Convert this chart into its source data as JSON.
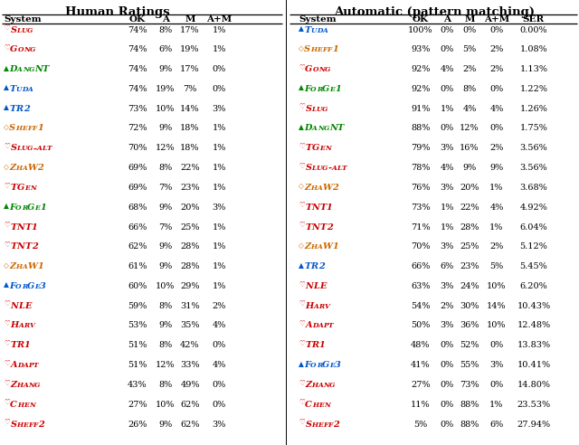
{
  "left_title": "Human Ratings",
  "right_title": "Automatic (pattern matching)",
  "left_headers": [
    "System",
    "OK",
    "A",
    "M",
    "A+M"
  ],
  "right_headers": [
    "System",
    "OK",
    "A",
    "M",
    "A+M",
    "SER"
  ],
  "left_rows": [
    {
      "symbol": "♡",
      "name": "Slug",
      "color": "#cc0000",
      "sym_color": "#cc0000",
      "vals": [
        "74%",
        "8%",
        "17%",
        "1%"
      ]
    },
    {
      "symbol": "♡",
      "name": "Gong",
      "color": "#cc0000",
      "sym_color": "#cc0000",
      "vals": [
        "74%",
        "6%",
        "19%",
        "1%"
      ]
    },
    {
      "symbol": "▲",
      "name": "DangNT",
      "color": "#008800",
      "sym_color": "#008800",
      "vals": [
        "74%",
        "9%",
        "17%",
        "0%"
      ]
    },
    {
      "symbol": "▲",
      "name": "Tuda",
      "color": "#0055cc",
      "sym_color": "#0055cc",
      "vals": [
        "74%",
        "19%",
        "7%",
        "0%"
      ]
    },
    {
      "symbol": "▲",
      "name": "TR2",
      "color": "#0055cc",
      "sym_color": "#0055cc",
      "vals": [
        "73%",
        "10%",
        "14%",
        "3%"
      ]
    },
    {
      "symbol": "◇",
      "name": "Sheff1",
      "color": "#cc6600",
      "sym_color": "#cc6600",
      "vals": [
        "72%",
        "9%",
        "18%",
        "1%"
      ]
    },
    {
      "symbol": "♡",
      "name": "Slug-alt",
      "color": "#cc0000",
      "sym_color": "#cc0000",
      "vals": [
        "70%",
        "12%",
        "18%",
        "1%"
      ]
    },
    {
      "symbol": "◇",
      "name": "ZhaW2",
      "color": "#cc6600",
      "sym_color": "#cc6600",
      "vals": [
        "69%",
        "8%",
        "22%",
        "1%"
      ]
    },
    {
      "symbol": "♡",
      "name": "TGen",
      "color": "#cc0000",
      "sym_color": "#cc0000",
      "vals": [
        "69%",
        "7%",
        "23%",
        "1%"
      ]
    },
    {
      "symbol": "▲",
      "name": "ForGe1",
      "color": "#008800",
      "sym_color": "#008800",
      "vals": [
        "68%",
        "9%",
        "20%",
        "3%"
      ]
    },
    {
      "symbol": "♡",
      "name": "TNT1",
      "color": "#cc0000",
      "sym_color": "#cc0000",
      "vals": [
        "66%",
        "7%",
        "25%",
        "1%"
      ]
    },
    {
      "symbol": "♡",
      "name": "TNT2",
      "color": "#cc0000",
      "sym_color": "#cc0000",
      "vals": [
        "62%",
        "9%",
        "28%",
        "1%"
      ]
    },
    {
      "symbol": "◇",
      "name": "ZhaW1",
      "color": "#cc6600",
      "sym_color": "#cc6600",
      "vals": [
        "61%",
        "9%",
        "28%",
        "1%"
      ]
    },
    {
      "symbol": "▲",
      "name": "ForGe3",
      "color": "#0055cc",
      "sym_color": "#0055cc",
      "vals": [
        "60%",
        "10%",
        "29%",
        "1%"
      ]
    },
    {
      "symbol": "♡",
      "name": "NLE",
      "color": "#cc0000",
      "sym_color": "#cc0000",
      "vals": [
        "59%",
        "8%",
        "31%",
        "2%"
      ]
    },
    {
      "symbol": "♡",
      "name": "Harv",
      "color": "#cc0000",
      "sym_color": "#cc0000",
      "vals": [
        "53%",
        "9%",
        "35%",
        "4%"
      ]
    },
    {
      "symbol": "♡",
      "name": "TR1",
      "color": "#cc0000",
      "sym_color": "#cc0000",
      "vals": [
        "51%",
        "8%",
        "42%",
        "0%"
      ]
    },
    {
      "symbol": "♡",
      "name": "Adapt",
      "color": "#cc0000",
      "sym_color": "#cc0000",
      "vals": [
        "51%",
        "12%",
        "33%",
        "4%"
      ]
    },
    {
      "symbol": "♡",
      "name": "Zhang",
      "color": "#cc0000",
      "sym_color": "#cc0000",
      "vals": [
        "43%",
        "8%",
        "49%",
        "0%"
      ]
    },
    {
      "symbol": "♡",
      "name": "Chen",
      "color": "#cc0000",
      "sym_color": "#cc0000",
      "vals": [
        "27%",
        "10%",
        "62%",
        "0%"
      ]
    },
    {
      "symbol": "♡",
      "name": "Sheff2",
      "color": "#cc0000",
      "sym_color": "#cc0000",
      "vals": [
        "26%",
        "9%",
        "62%",
        "3%"
      ]
    }
  ],
  "right_rows": [
    {
      "symbol": "▲",
      "name": "Tuda",
      "color": "#0055cc",
      "sym_color": "#0055cc",
      "vals": [
        "100%",
        "0%",
        "0%",
        "0%",
        "0.00%"
      ]
    },
    {
      "symbol": "◇",
      "name": "Sheff1",
      "color": "#cc6600",
      "sym_color": "#cc6600",
      "vals": [
        "93%",
        "0%",
        "5%",
        "2%",
        "1.08%"
      ]
    },
    {
      "symbol": "♡",
      "name": "Gong",
      "color": "#cc0000",
      "sym_color": "#cc0000",
      "vals": [
        "92%",
        "4%",
        "2%",
        "2%",
        "1.13%"
      ]
    },
    {
      "symbol": "▲",
      "name": "ForGe1",
      "color": "#008800",
      "sym_color": "#008800",
      "vals": [
        "92%",
        "0%",
        "8%",
        "0%",
        "1.22%"
      ]
    },
    {
      "symbol": "♡",
      "name": "Slug",
      "color": "#cc0000",
      "sym_color": "#cc0000",
      "vals": [
        "91%",
        "1%",
        "4%",
        "4%",
        "1.26%"
      ]
    },
    {
      "symbol": "▲",
      "name": "DangNT",
      "color": "#008800",
      "sym_color": "#008800",
      "vals": [
        "88%",
        "0%",
        "12%",
        "0%",
        "1.75%"
      ]
    },
    {
      "symbol": "♡",
      "name": "TGen",
      "color": "#cc0000",
      "sym_color": "#cc0000",
      "vals": [
        "79%",
        "3%",
        "16%",
        "2%",
        "3.56%"
      ]
    },
    {
      "symbol": "♡",
      "name": "Slug-alt",
      "color": "#cc0000",
      "sym_color": "#cc0000",
      "vals": [
        "78%",
        "4%",
        "9%",
        "9%",
        "3.56%"
      ]
    },
    {
      "symbol": "◇",
      "name": "ZhaW2",
      "color": "#cc6600",
      "sym_color": "#cc6600",
      "vals": [
        "76%",
        "3%",
        "20%",
        "1%",
        "3.68%"
      ]
    },
    {
      "symbol": "♡",
      "name": "TNT1",
      "color": "#cc0000",
      "sym_color": "#cc0000",
      "vals": [
        "73%",
        "1%",
        "22%",
        "4%",
        "4.92%"
      ]
    },
    {
      "symbol": "♡",
      "name": "TNT2",
      "color": "#cc0000",
      "sym_color": "#cc0000",
      "vals": [
        "71%",
        "1%",
        "28%",
        "1%",
        "6.04%"
      ]
    },
    {
      "symbol": "◇",
      "name": "ZhaW1",
      "color": "#cc6600",
      "sym_color": "#cc6600",
      "vals": [
        "70%",
        "3%",
        "25%",
        "2%",
        "5.12%"
      ]
    },
    {
      "symbol": "▲",
      "name": "TR2",
      "color": "#0055cc",
      "sym_color": "#0055cc",
      "vals": [
        "66%",
        "6%",
        "23%",
        "5%",
        "5.45%"
      ]
    },
    {
      "symbol": "♡",
      "name": "NLE",
      "color": "#cc0000",
      "sym_color": "#cc0000",
      "vals": [
        "63%",
        "3%",
        "24%",
        "10%",
        "6.20%"
      ]
    },
    {
      "symbol": "♡",
      "name": "Harv",
      "color": "#cc0000",
      "sym_color": "#cc0000",
      "vals": [
        "54%",
        "2%",
        "30%",
        "14%",
        "10.43%"
      ]
    },
    {
      "symbol": "♡",
      "name": "Adapt",
      "color": "#cc0000",
      "sym_color": "#cc0000",
      "vals": [
        "50%",
        "3%",
        "36%",
        "10%",
        "12.48%"
      ]
    },
    {
      "symbol": "♡",
      "name": "TR1",
      "color": "#cc0000",
      "sym_color": "#cc0000",
      "vals": [
        "48%",
        "0%",
        "52%",
        "0%",
        "13.83%"
      ]
    },
    {
      "symbol": "▲",
      "name": "ForGe3",
      "color": "#0055cc",
      "sym_color": "#0055cc",
      "vals": [
        "41%",
        "0%",
        "55%",
        "3%",
        "10.41%"
      ]
    },
    {
      "symbol": "♡",
      "name": "Zhang",
      "color": "#cc0000",
      "sym_color": "#cc0000",
      "vals": [
        "27%",
        "0%",
        "73%",
        "0%",
        "14.80%"
      ]
    },
    {
      "symbol": "♡",
      "name": "Chen",
      "color": "#cc0000",
      "sym_color": "#cc0000",
      "vals": [
        "11%",
        "0%",
        "88%",
        "1%",
        "23.53%"
      ]
    },
    {
      "symbol": "♡",
      "name": "Sheff2",
      "color": "#cc0000",
      "sym_color": "#cc0000",
      "vals": [
        "5%",
        "0%",
        "88%",
        "6%",
        "27.94%"
      ]
    }
  ]
}
